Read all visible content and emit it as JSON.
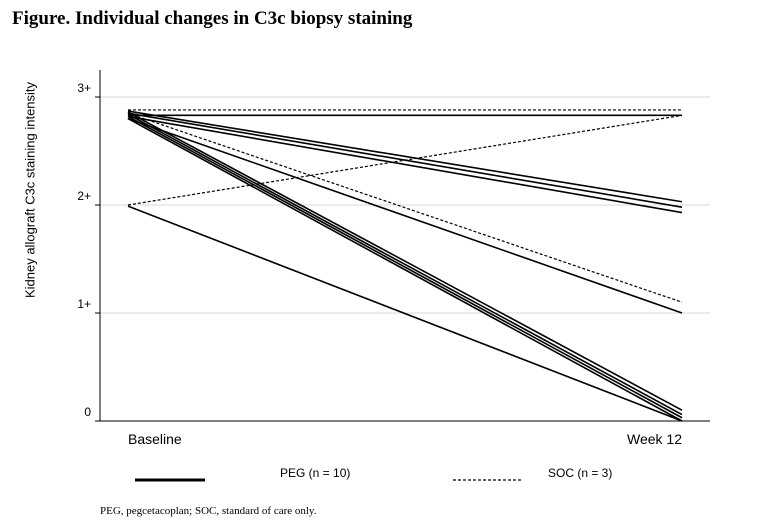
{
  "chart_data": {
    "type": "line",
    "title": "Figure. Individual changes in C3c biopsy staining",
    "ylabel": "Kidney allograft C3c staining intensity",
    "xlabel": "",
    "categories": [
      "Baseline",
      "Week 12"
    ],
    "yticks": [
      "0",
      "1+",
      "2+",
      "3+"
    ],
    "ylim": [
      0,
      3
    ],
    "grid": "horizontal",
    "legend": [
      {
        "label": "PEG (n = 10)",
        "style": "solid"
      },
      {
        "label": "SOC (n = 3)",
        "style": "dashed"
      }
    ],
    "series": [
      {
        "group": "PEG",
        "style": "solid",
        "values": [
          2.83,
          2.83
        ]
      },
      {
        "group": "PEG",
        "style": "solid",
        "values": [
          2.87,
          2.03
        ]
      },
      {
        "group": "PEG",
        "style": "solid",
        "values": [
          2.85,
          1.98
        ]
      },
      {
        "group": "PEG",
        "style": "solid",
        "values": [
          2.82,
          1.93
        ]
      },
      {
        "group": "PEG",
        "style": "solid",
        "values": [
          2.8,
          1.0
        ]
      },
      {
        "group": "PEG",
        "style": "solid",
        "values": [
          2.86,
          0.1
        ]
      },
      {
        "group": "PEG",
        "style": "solid",
        "values": [
          2.84,
          0.06
        ]
      },
      {
        "group": "PEG",
        "style": "solid",
        "values": [
          2.82,
          0.03
        ]
      },
      {
        "group": "PEG",
        "style": "solid",
        "values": [
          2.8,
          0.0
        ]
      },
      {
        "group": "PEG",
        "style": "solid",
        "values": [
          1.99,
          0.0
        ]
      },
      {
        "group": "SOC",
        "style": "dashed",
        "values": [
          2.88,
          2.88
        ]
      },
      {
        "group": "SOC",
        "style": "dashed",
        "values": [
          2.85,
          1.1
        ]
      },
      {
        "group": "SOC",
        "style": "dashed",
        "values": [
          2.0,
          2.83
        ]
      }
    ]
  },
  "footnote": "PEG, pegcetacoplan; SOC, standard of care only."
}
